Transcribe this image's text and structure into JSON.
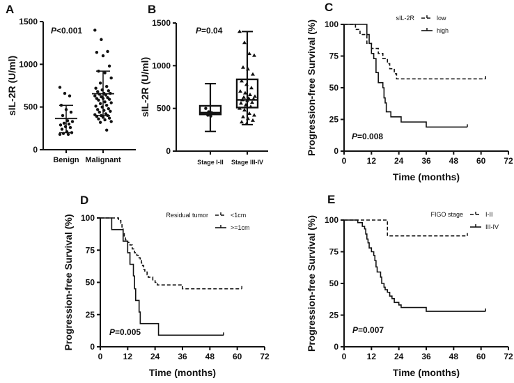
{
  "chart_data": [
    {
      "panel": "A",
      "type": "scatter",
      "ylabel": "sIL-2R (U/ml)",
      "ylim": [
        0,
        1500
      ],
      "yticks": [
        0,
        500,
        1000,
        1500
      ],
      "categories": [
        "Benign",
        "Malignant"
      ],
      "annotation": {
        "italic": "P",
        "text": "<0.001"
      },
      "series": [
        {
          "name": "Benign",
          "values": [
            730,
            660,
            630,
            520,
            470,
            440,
            400,
            340,
            330,
            310,
            300,
            290,
            270,
            260,
            240,
            210,
            200,
            190,
            180,
            180
          ],
          "mean": 365,
          "sd": [
            200,
            520
          ]
        },
        {
          "name": "Malignant",
          "values": [
            1400,
            1290,
            1150,
            1140,
            1100,
            980,
            920,
            900,
            840,
            780,
            740,
            720,
            700,
            690,
            680,
            660,
            660,
            650,
            640,
            630,
            620,
            610,
            600,
            600,
            590,
            580,
            560,
            550,
            540,
            520,
            510,
            500,
            480,
            470,
            460,
            450,
            440,
            420,
            410,
            400,
            400,
            390,
            380,
            370,
            360,
            350,
            330,
            320,
            230
          ],
          "mean": 655,
          "sd": [
            400,
            920
          ]
        }
      ]
    },
    {
      "panel": "B",
      "type": "box",
      "ylabel": "sIL-2R (U/ml)",
      "ylim": [
        0,
        1500
      ],
      "yticks": [
        0,
        500,
        1000,
        1500
      ],
      "categories": [
        "Stage I-II",
        "Stage III-IV"
      ],
      "annotation": {
        "italic": "P",
        "text": "=0.04"
      },
      "series": [
        {
          "name": "Stage I-II",
          "min": 230,
          "q1": 430,
          "median": 450,
          "q3": 530,
          "max": 790,
          "marker": "circle",
          "points": [
            500,
            460,
            450,
            440,
            420,
            410
          ]
        },
        {
          "name": "Stage III-IV",
          "min": 310,
          "q1": 510,
          "median": 600,
          "q3": 840,
          "max": 1400,
          "marker": "triangle",
          "points": [
            1400,
            1270,
            1140,
            1120,
            980,
            960,
            900,
            820,
            780,
            740,
            700,
            680,
            660,
            640,
            630,
            620,
            610,
            600,
            590,
            570,
            560,
            540,
            520,
            500,
            480,
            440,
            420,
            400,
            380,
            360,
            340,
            320
          ]
        }
      ]
    },
    {
      "panel": "C",
      "type": "line",
      "subtype": "kaplan-meier",
      "xlabel": "Time (months)",
      "ylabel": "Progression-free Survival (%)",
      "xlim": [
        0,
        72
      ],
      "ylim": [
        0,
        100
      ],
      "xticks": [
        0,
        12,
        24,
        36,
        48,
        60,
        72
      ],
      "yticks": [
        0,
        25,
        50,
        75,
        100
      ],
      "legend_title": "sIL-2R",
      "legend_position": "top-right",
      "annotation": {
        "italic": "P",
        "text": "=0.008"
      },
      "series": [
        {
          "name": "low",
          "style": "dashed",
          "end": 62,
          "steps": [
            [
              0,
              100
            ],
            [
              5,
              96
            ],
            [
              7,
              92
            ],
            [
              10,
              85
            ],
            [
              12,
              81
            ],
            [
              15,
              77
            ],
            [
              17,
              73
            ],
            [
              19,
              69
            ],
            [
              20,
              65
            ],
            [
              22,
              61
            ],
            [
              23,
              57
            ]
          ]
        },
        {
          "name": "high",
          "style": "solid",
          "end": 54,
          "steps": [
            [
              0,
              100
            ],
            [
              10,
              92
            ],
            [
              11,
              85
            ],
            [
              12,
              77
            ],
            [
              13,
              73
            ],
            [
              14,
              62
            ],
            [
              15,
              54
            ],
            [
              17,
              50
            ],
            [
              17.5,
              42
            ],
            [
              18,
              38
            ],
            [
              18.5,
              31
            ],
            [
              20.5,
              27
            ],
            [
              25,
              23
            ],
            [
              36,
              19
            ]
          ]
        }
      ]
    },
    {
      "panel": "D",
      "type": "line",
      "subtype": "kaplan-meier",
      "xlabel": "Time (months)",
      "ylabel": "Progression-free Survival (%)",
      "xlim": [
        0,
        72
      ],
      "ylim": [
        0,
        100
      ],
      "xticks": [
        0,
        12,
        24,
        36,
        48,
        60,
        72
      ],
      "yticks": [
        0,
        25,
        50,
        75,
        100
      ],
      "legend_title": "Residual tumor",
      "legend_position": "top-right",
      "annotation": {
        "italic": "P",
        "text": "=0.005"
      },
      "series": [
        {
          "name": "<1cm",
          "style": "dashed",
          "end": 62,
          "steps": [
            [
              0,
              100
            ],
            [
              8,
              98
            ],
            [
              9,
              96
            ],
            [
              9.5,
              93
            ],
            [
              10,
              89
            ],
            [
              10.5,
              85
            ],
            [
              11,
              83
            ],
            [
              12,
              81
            ],
            [
              13,
              79
            ],
            [
              14,
              76
            ],
            [
              15,
              73
            ],
            [
              16,
              71
            ],
            [
              17,
              69
            ],
            [
              17.5,
              67
            ],
            [
              18,
              65
            ],
            [
              18.5,
              63
            ],
            [
              19,
              60
            ],
            [
              19.5,
              58
            ],
            [
              20.5,
              56
            ],
            [
              21,
              54
            ],
            [
              23,
              52
            ],
            [
              24,
              50
            ],
            [
              25,
              48
            ],
            [
              36,
              45
            ]
          ]
        },
        {
          "name": ">=1cm",
          "style": "solid",
          "end": 54,
          "steps": [
            [
              0,
              100
            ],
            [
              5,
              91
            ],
            [
              10,
              82
            ],
            [
              12,
              73
            ],
            [
              13,
              64
            ],
            [
              14.5,
              55
            ],
            [
              15,
              45
            ],
            [
              15.5,
              36
            ],
            [
              17,
              27
            ],
            [
              17.5,
              18
            ],
            [
              25.5,
              9
            ]
          ]
        }
      ]
    },
    {
      "panel": "E",
      "type": "line",
      "subtype": "kaplan-meier",
      "xlabel": "Time (months)",
      "ylabel": "Progression-free Survival (%)",
      "xlim": [
        0,
        72
      ],
      "ylim": [
        0,
        100
      ],
      "xticks": [
        0,
        12,
        24,
        36,
        48,
        60,
        72
      ],
      "yticks": [
        0,
        25,
        50,
        75,
        100
      ],
      "legend_title": "FIGO stage",
      "legend_position": "top-right",
      "annotation": {
        "italic": "P",
        "text": "=0.007"
      },
      "series": [
        {
          "name": "I-II",
          "style": "dashed",
          "end": 54,
          "steps": [
            [
              0,
              100
            ],
            [
              19,
              87.5
            ]
          ]
        },
        {
          "name": "III-IV",
          "style": "solid",
          "end": 62,
          "steps": [
            [
              0,
              100
            ],
            [
              6,
              98
            ],
            [
              8,
              95
            ],
            [
              9,
              93
            ],
            [
              9.5,
              89
            ],
            [
              10,
              85
            ],
            [
              10.5,
              82
            ],
            [
              11,
              78
            ],
            [
              12,
              75
            ],
            [
              13,
              72
            ],
            [
              13.5,
              68
            ],
            [
              14,
              63
            ],
            [
              14.5,
              59
            ],
            [
              16,
              55
            ],
            [
              16.5,
              50
            ],
            [
              17.5,
              47
            ],
            [
              18,
              45
            ],
            [
              19,
              43
            ],
            [
              20,
              40
            ],
            [
              21,
              38
            ],
            [
              22,
              35
            ],
            [
              24,
              33
            ],
            [
              25,
              31
            ],
            [
              36,
              28
            ]
          ]
        }
      ]
    }
  ]
}
